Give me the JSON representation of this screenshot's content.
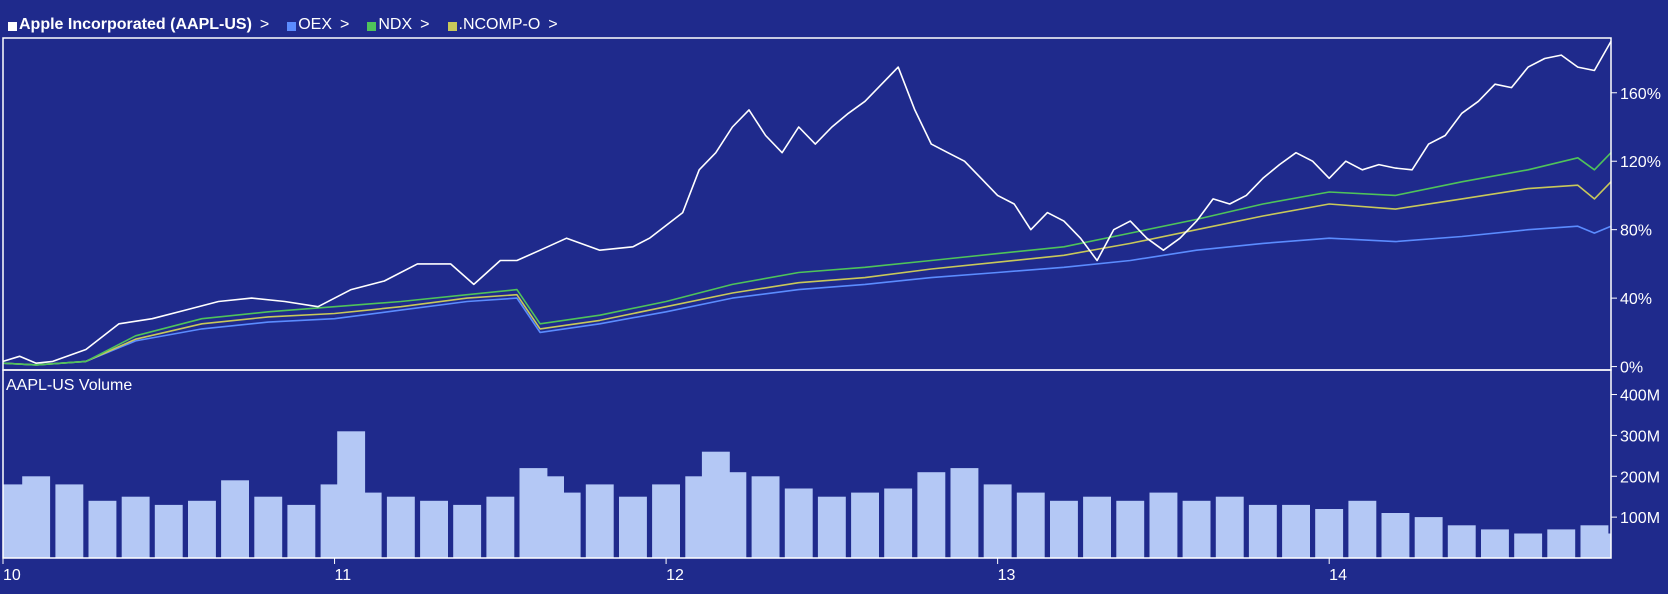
{
  "legend": {
    "primary": {
      "label": "Apple Incorporated (AAPL-US)",
      "chevron": ">"
    },
    "items": [
      {
        "label": "OEX",
        "chevron": ">",
        "color": "#5b8cff"
      },
      {
        "label": "NDX",
        "chevron": ">",
        "color": "#4fc35a"
      },
      {
        "label": ".NCOMP-O",
        "chevron": ">",
        "color": "#c8c85a"
      }
    ]
  },
  "colors": {
    "background": "#1f2a8c",
    "frame": "#ffffff",
    "aapl": "#ffffff",
    "oex": "#5b8cff",
    "ndx": "#4fc35a",
    "ncomp": "#c8c85a",
    "volume": "#b4c8f5"
  },
  "chart_data": [
    {
      "type": "line",
      "title": "",
      "x_unit": "year (20xx)",
      "xlim": [
        10.0,
        14.85
      ],
      "ylim": [
        -2,
        192
      ],
      "y_tick_values": [
        0,
        40,
        80,
        120,
        160
      ],
      "y_tick_labels": [
        "0%",
        "40%",
        "80%",
        "120%",
        "160%"
      ],
      "x_tick_values": [
        10,
        11,
        12,
        13,
        14
      ],
      "x_tick_labels": [
        "10",
        "11",
        "12",
        "13",
        "14"
      ],
      "series": [
        {
          "name": "Apple Incorporated (AAPL-US)",
          "color": "#ffffff",
          "x": [
            10.0,
            10.05,
            10.1,
            10.15,
            10.25,
            10.35,
            10.45,
            10.55,
            10.65,
            10.75,
            10.85,
            10.95,
            11.05,
            11.15,
            11.25,
            11.35,
            11.42,
            11.5,
            11.55,
            11.62,
            11.7,
            11.8,
            11.9,
            11.95,
            12.05,
            12.1,
            12.15,
            12.2,
            12.25,
            12.3,
            12.35,
            12.4,
            12.45,
            12.5,
            12.55,
            12.6,
            12.65,
            12.7,
            12.75,
            12.8,
            12.85,
            12.9,
            12.95,
            13.0,
            13.05,
            13.1,
            13.15,
            13.2,
            13.25,
            13.3,
            13.35,
            13.4,
            13.45,
            13.5,
            13.55,
            13.6,
            13.65,
            13.7,
            13.75,
            13.8,
            13.85,
            13.9,
            13.95,
            14.0,
            14.05,
            14.1,
            14.15,
            14.2,
            14.25,
            14.3,
            14.35,
            14.4,
            14.45,
            14.5,
            14.55,
            14.6,
            14.65,
            14.7,
            14.75,
            14.8,
            14.85
          ],
          "y": [
            3,
            6,
            2,
            3,
            10,
            25,
            28,
            33,
            38,
            40,
            38,
            35,
            45,
            50,
            60,
            60,
            48,
            62,
            62,
            68,
            75,
            68,
            70,
            75,
            90,
            115,
            125,
            140,
            150,
            135,
            125,
            140,
            130,
            140,
            148,
            155,
            165,
            175,
            150,
            130,
            125,
            120,
            110,
            100,
            95,
            80,
            90,
            85,
            75,
            62,
            80,
            85,
            75,
            68,
            75,
            85,
            98,
            95,
            100,
            110,
            118,
            125,
            120,
            110,
            120,
            115,
            118,
            116,
            115,
            130,
            135,
            148,
            155,
            165,
            163,
            175,
            180,
            182,
            175,
            173,
            190
          ]
        },
        {
          "name": "OEX",
          "color": "#5b8cff",
          "x": [
            10.0,
            10.1,
            10.25,
            10.4,
            10.6,
            10.8,
            11.0,
            11.2,
            11.4,
            11.55,
            11.62,
            11.8,
            12.0,
            12.2,
            12.4,
            12.6,
            12.8,
            13.0,
            13.2,
            13.4,
            13.6,
            13.8,
            14.0,
            14.2,
            14.4,
            14.6,
            14.75,
            14.8,
            14.85
          ],
          "y": [
            2,
            1,
            3,
            15,
            22,
            26,
            28,
            33,
            38,
            40,
            20,
            25,
            32,
            40,
            45,
            48,
            52,
            55,
            58,
            62,
            68,
            72,
            75,
            73,
            76,
            80,
            82,
            78,
            82
          ]
        },
        {
          "name": "NDX",
          "color": "#4fc35a",
          "x": [
            10.0,
            10.1,
            10.25,
            10.4,
            10.6,
            10.8,
            11.0,
            11.2,
            11.4,
            11.55,
            11.62,
            11.8,
            12.0,
            12.2,
            12.4,
            12.6,
            12.8,
            13.0,
            13.2,
            13.4,
            13.6,
            13.8,
            14.0,
            14.2,
            14.4,
            14.6,
            14.75,
            14.8,
            14.85
          ],
          "y": [
            2,
            1,
            3,
            18,
            28,
            32,
            35,
            38,
            42,
            45,
            25,
            30,
            38,
            48,
            55,
            58,
            62,
            66,
            70,
            78,
            86,
            95,
            102,
            100,
            108,
            115,
            122,
            115,
            125
          ]
        },
        {
          "name": ".NCOMP-O",
          "color": "#c8c85a",
          "x": [
            10.0,
            10.1,
            10.25,
            10.4,
            10.6,
            10.8,
            11.0,
            11.2,
            11.4,
            11.55,
            11.62,
            11.8,
            12.0,
            12.2,
            12.4,
            12.6,
            12.8,
            13.0,
            13.2,
            13.4,
            13.6,
            13.8,
            14.0,
            14.2,
            14.4,
            14.6,
            14.75,
            14.8,
            14.85
          ],
          "y": [
            2,
            1,
            3,
            16,
            25,
            29,
            31,
            35,
            40,
            42,
            22,
            27,
            35,
            43,
            49,
            52,
            57,
            61,
            65,
            72,
            80,
            88,
            95,
            92,
            98,
            104,
            106,
            98,
            108
          ]
        }
      ]
    },
    {
      "type": "bar",
      "title": "AAPL-US Volume",
      "x_unit": "year (20xx)",
      "xlim": [
        10.0,
        14.85
      ],
      "ylim": [
        0,
        460
      ],
      "y_unit": "M",
      "y_tick_values": [
        100,
        200,
        300,
        400
      ],
      "y_tick_labels": [
        "100M",
        "200M",
        "300M",
        "400M"
      ],
      "x_tick_values": [
        10,
        11,
        12,
        13,
        14
      ],
      "x_tick_labels": [
        "10",
        "11",
        "12",
        "13",
        "14"
      ],
      "x": [
        10.0,
        10.1,
        10.2,
        10.3,
        10.4,
        10.5,
        10.6,
        10.7,
        10.8,
        10.9,
        11.0,
        11.05,
        11.1,
        11.2,
        11.3,
        11.4,
        11.5,
        11.6,
        11.65,
        11.7,
        11.8,
        11.9,
        12.0,
        12.1,
        12.15,
        12.2,
        12.3,
        12.4,
        12.5,
        12.6,
        12.7,
        12.8,
        12.9,
        13.0,
        13.1,
        13.2,
        13.3,
        13.4,
        13.5,
        13.6,
        13.7,
        13.8,
        13.9,
        14.0,
        14.1,
        14.2,
        14.3,
        14.4,
        14.5,
        14.6,
        14.7,
        14.8,
        14.85
      ],
      "values": [
        180,
        200,
        180,
        140,
        150,
        130,
        140,
        190,
        150,
        130,
        180,
        310,
        160,
        150,
        140,
        130,
        150,
        220,
        200,
        160,
        180,
        150,
        180,
        200,
        260,
        210,
        200,
        170,
        150,
        160,
        170,
        210,
        220,
        180,
        160,
        140,
        150,
        140,
        160,
        140,
        150,
        130,
        130,
        120,
        140,
        110,
        100,
        80,
        70,
        60,
        70,
        80,
        60
      ]
    }
  ]
}
